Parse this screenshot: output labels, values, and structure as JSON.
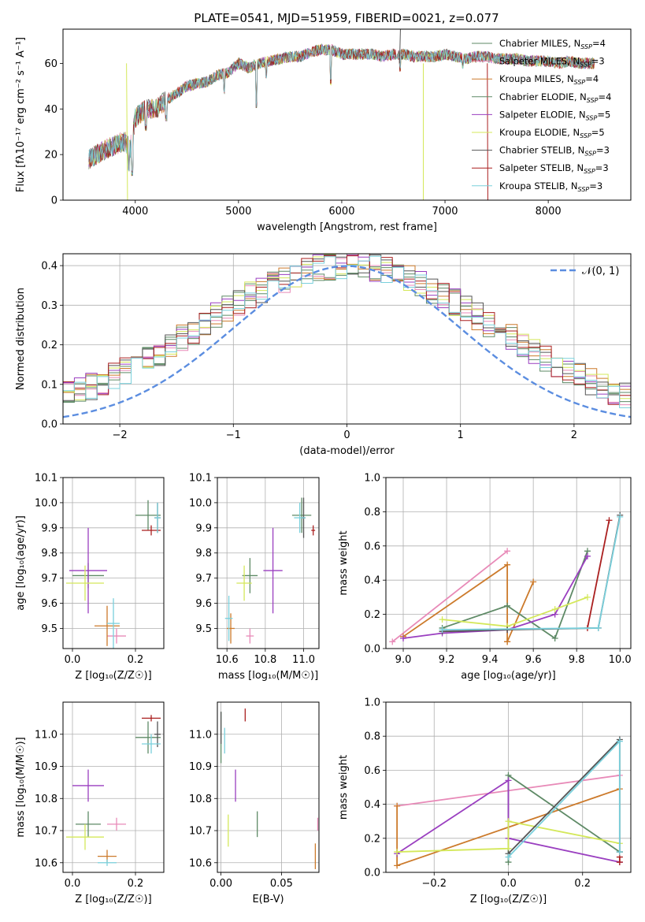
{
  "figure": {
    "title": "PLATE=0541, MJD=51959, FIBERID=0021, z=0.077"
  },
  "colors": {
    "series": [
      "#5e8a66",
      "#e88ab8",
      "#cc7a2b",
      "#5e8a66",
      "#9a3fc0",
      "#d4e85a",
      "#555555",
      "#aa1f1f",
      "#7ad0dc"
    ],
    "gauss": "#5b8de0"
  },
  "chart_data": [
    {
      "id": "spectrum",
      "type": "line",
      "xlabel": "wavelength [Angstrom, rest frame]",
      "ylabel": "Flux [fλ10⁻¹⁷ erg cm⁻² s⁻¹ A⁻¹]",
      "xlim": [
        3300,
        8800
      ],
      "ylim": [
        0,
        75
      ],
      "xticks": [
        4000,
        5000,
        6000,
        7000,
        8000
      ],
      "yticks": [
        0,
        20,
        40,
        60
      ],
      "continuum": {
        "x": [
          3550,
          3700,
          3800,
          3900,
          3950,
          4000,
          4100,
          4200,
          4300,
          4400,
          4500,
          4600,
          4700,
          4800,
          4900,
          5000,
          5100,
          5200,
          5300,
          5400,
          5500,
          5600,
          5700,
          5800,
          5900,
          6000,
          6100,
          6200,
          6300,
          6400,
          6500,
          6600,
          6700,
          6800,
          6900,
          7000,
          7100,
          7200,
          7300,
          7400,
          7500,
          7600,
          7700,
          7800,
          7900,
          8000,
          8100,
          8200,
          8300,
          8400,
          8450
        ],
        "y": [
          18,
          22,
          24,
          26,
          22,
          36,
          40,
          40,
          44,
          47,
          50,
          51,
          52,
          55,
          56,
          60,
          58,
          60,
          61,
          62,
          63,
          63,
          65,
          66,
          66,
          64,
          64,
          64,
          64,
          63,
          64,
          64,
          63,
          63,
          63,
          64,
          63,
          62,
          63,
          63,
          62,
          62,
          62,
          61,
          61,
          61,
          60,
          61,
          60,
          60,
          60
        ]
      },
      "dips": [
        {
          "x": 3935,
          "y": 14
        },
        {
          "x": 3970,
          "y": 12
        },
        {
          "x": 4102,
          "y": 32
        },
        {
          "x": 4300,
          "y": 36
        },
        {
          "x": 4861,
          "y": 48
        },
        {
          "x": 5175,
          "y": 42
        },
        {
          "x": 5270,
          "y": 55
        },
        {
          "x": 5893,
          "y": 52
        },
        {
          "x": 6563,
          "y": 58
        },
        {
          "x": 7170,
          "y": 59
        }
      ],
      "spikes": [
        {
          "x": 3915,
          "x2": 3925,
          "y": 0
        },
        {
          "x": 6790,
          "x2": 6790,
          "y": 0
        },
        {
          "x": 7410,
          "x2": 7415,
          "y": 0
        },
        {
          "x": 6560,
          "x2": 6570,
          "y": 78
        }
      ],
      "legend": [
        {
          "label": "Chabrier MILES, N",
          "sub": "SSP",
          "suffix": "=4"
        },
        {
          "label": "Salpeter MILES, N",
          "sub": "SSP",
          "suffix": "=3"
        },
        {
          "label": "Kroupa MILES, N",
          "sub": "SSP",
          "suffix": "=4"
        },
        {
          "label": "Chabrier ELODIE, N",
          "sub": "SSP",
          "suffix": "=4"
        },
        {
          "label": "Salpeter ELODIE, N",
          "sub": "SSP",
          "suffix": "=5"
        },
        {
          "label": "Kroupa ELODIE, N",
          "sub": "SSP",
          "suffix": "=5"
        },
        {
          "label": "Chabrier STELIB, N",
          "sub": "SSP",
          "suffix": "=3"
        },
        {
          "label": "Salpeter STELIB, N",
          "sub": "SSP",
          "suffix": "=3"
        },
        {
          "label": "Kroupa STELIB, N",
          "sub": "SSP",
          "suffix": "=3"
        }
      ]
    },
    {
      "id": "residuals",
      "type": "histogram",
      "xlabel": "(data-model)/error",
      "ylabel": "Normed distribution",
      "xlim": [
        -2.5,
        2.5
      ],
      "ylim": [
        0,
        0.43
      ],
      "xticks": [
        -2,
        -1,
        0,
        1,
        2
      ],
      "yticks": [
        0.0,
        0.1,
        0.2,
        0.3,
        0.4
      ],
      "grid": true,
      "bin_edges_start": -2.5,
      "bin_width": 0.1,
      "gaussian_label": "𝒩(0, 1)",
      "gaussian": {
        "mu": 0,
        "sigma": 1
      }
    },
    {
      "id": "age_vs_Z",
      "type": "errorbar",
      "xlabel": "Z [log₁₀(Z/Z☉)]",
      "ylabel": "age  [log₁₀(age/yr)]",
      "xlim": [
        -0.03,
        0.29
      ],
      "ylim": [
        9.42,
        10.1
      ],
      "xticks": [
        0.0,
        0.2
      ],
      "xticklabels": [
        "0.0",
        "0.2"
      ],
      "yticks": [
        9.5,
        9.6,
        9.7,
        9.8,
        9.9,
        10.0,
        10.1
      ],
      "grid": true,
      "points": [
        {
          "c": 0,
          "x": 0.05,
          "xe": 0.05,
          "y": 9.71,
          "ye": 0.05
        },
        {
          "c": 1,
          "x": 0.14,
          "xe": 0.03,
          "y": 9.47,
          "ye": 0.03
        },
        {
          "c": 2,
          "x": 0.11,
          "xe": 0.04,
          "y": 9.51,
          "ye": 0.08
        },
        {
          "c": 3,
          "x": 0.24,
          "xe": 0.04,
          "y": 9.95,
          "ye": 0.06
        },
        {
          "c": 4,
          "x": 0.05,
          "xe": 0.06,
          "y": 9.73,
          "ye": 0.17
        },
        {
          "c": 5,
          "x": 0.04,
          "xe": 0.06,
          "y": 9.68,
          "ye": 0.07
        },
        {
          "c": 6,
          "x": 0.27,
          "xe": 0.01,
          "y": 9.94,
          "ye": 0.06
        },
        {
          "c": 7,
          "x": 0.25,
          "xe": 0.03,
          "y": 9.89,
          "ye": 0.02
        },
        {
          "c": 8,
          "x": 0.27,
          "xe": 0.01,
          "y": 9.94,
          "ye": 0.06
        },
        {
          "c": 8,
          "x": 0.13,
          "xe": 0.02,
          "y": 9.52,
          "ye": 0.1
        }
      ]
    },
    {
      "id": "age_vs_mass",
      "type": "errorbar",
      "xlabel": "mass [log₁₀(M/M☉)]",
      "ylabel": "",
      "xlim": [
        10.55,
        11.08
      ],
      "ylim": [
        9.42,
        10.1
      ],
      "xticks": [
        10.6,
        10.8,
        11.0
      ],
      "xticklabels": [
        "10.6",
        "10.8",
        "11.0"
      ],
      "yticks": [
        9.5,
        9.6,
        9.7,
        9.8,
        9.9,
        10.0,
        10.1
      ],
      "grid": true,
      "points": [
        {
          "c": 0,
          "x": 10.72,
          "xe": 0.04,
          "y": 9.71,
          "ye": 0.07
        },
        {
          "c": 1,
          "x": 10.72,
          "xe": 0.02,
          "y": 9.47,
          "ye": 0.03
        },
        {
          "c": 2,
          "x": 10.62,
          "xe": 0.02,
          "y": 9.5,
          "ye": 0.06
        },
        {
          "c": 3,
          "x": 10.99,
          "xe": 0.05,
          "y": 9.95,
          "ye": 0.07
        },
        {
          "c": 4,
          "x": 10.84,
          "xe": 0.05,
          "y": 9.73,
          "ye": 0.17
        },
        {
          "c": 5,
          "x": 10.69,
          "xe": 0.04,
          "y": 9.68,
          "ye": 0.07
        },
        {
          "c": 6,
          "x": 11.0,
          "xe": 0.01,
          "y": 9.94,
          "ye": 0.08
        },
        {
          "c": 7,
          "x": 11.05,
          "xe": 0.01,
          "y": 9.89,
          "ye": 0.02
        },
        {
          "c": 8,
          "x": 10.98,
          "xe": 0.03,
          "y": 9.94,
          "ye": 0.06
        },
        {
          "c": 8,
          "x": 10.61,
          "xe": 0.02,
          "y": 9.54,
          "ye": 0.09
        }
      ]
    },
    {
      "id": "weight_vs_age",
      "type": "line",
      "xlabel": "age  [log₁₀(age/yr)]",
      "ylabel": "mass weight",
      "xlim": [
        8.92,
        10.05
      ],
      "ylim": [
        0,
        1.0
      ],
      "xticks": [
        9.0,
        9.2,
        9.4,
        9.6,
        9.8,
        10.0
      ],
      "xticklabels": [
        "9.0",
        "9.2",
        "9.4",
        "9.6",
        "9.8",
        "10.0"
      ],
      "yticks": [
        0.0,
        0.2,
        0.4,
        0.6,
        0.8,
        1.0
      ],
      "grid": true,
      "series": [
        {
          "c": 1,
          "x": [
            8.95,
            9.48
          ],
          "y": [
            0.04,
            0.57
          ]
        },
        {
          "c": 2,
          "x": [
            9.0,
            9.48,
            9.48,
            9.6,
            9.48
          ],
          "y": [
            0.07,
            0.49,
            0.04,
            0.39,
            0.04
          ]
        },
        {
          "c": 3,
          "x": [
            9.18,
            9.48,
            9.7,
            9.85
          ],
          "y": [
            0.12,
            0.25,
            0.06,
            0.57
          ]
        },
        {
          "c": 4,
          "x": [
            9.0,
            9.18,
            9.48,
            9.7,
            9.85
          ],
          "y": [
            0.06,
            0.09,
            0.11,
            0.2,
            0.54
          ]
        },
        {
          "c": 5,
          "x": [
            9.18,
            9.48,
            9.7,
            9.85
          ],
          "y": [
            0.17,
            0.13,
            0.23,
            0.3
          ]
        },
        {
          "c": 6,
          "x": [
            9.18,
            9.48,
            9.9,
            10.0
          ],
          "y": [
            0.1,
            0.11,
            0.12,
            0.78
          ]
        },
        {
          "c": 7,
          "x": [
            9.85,
            9.95
          ],
          "y": [
            0.12,
            0.75
          ]
        },
        {
          "c": 8,
          "x": [
            9.18,
            9.9,
            10.0
          ],
          "y": [
            0.11,
            0.12,
            0.77
          ]
        }
      ]
    },
    {
      "id": "mass_vs_Z",
      "type": "errorbar",
      "xlabel": "Z [log₁₀(Z/Z☉)]",
      "ylabel": "mass [log₁₀(M/M☉)]",
      "xlim": [
        -0.03,
        0.29
      ],
      "ylim": [
        10.57,
        11.1
      ],
      "xticks": [
        0.0,
        0.2
      ],
      "xticklabels": [
        "0.0",
        "0.2"
      ],
      "yticks": [
        10.6,
        10.7,
        10.8,
        10.9,
        11.0
      ],
      "grid": true,
      "points": [
        {
          "c": 0,
          "x": 0.05,
          "xe": 0.04,
          "y": 10.72,
          "ye": 0.04
        },
        {
          "c": 1,
          "x": 0.14,
          "xe": 0.03,
          "y": 10.72,
          "ye": 0.02
        },
        {
          "c": 2,
          "x": 0.11,
          "xe": 0.03,
          "y": 10.62,
          "ye": 0.02
        },
        {
          "c": 3,
          "x": 0.24,
          "xe": 0.04,
          "y": 10.99,
          "ye": 0.05
        },
        {
          "c": 4,
          "x": 0.05,
          "xe": 0.05,
          "y": 10.84,
          "ye": 0.05
        },
        {
          "c": 5,
          "x": 0.04,
          "xe": 0.06,
          "y": 10.68,
          "ye": 0.04
        },
        {
          "c": 6,
          "x": 0.27,
          "xe": 0.01,
          "y": 11.0,
          "ye": 0.04
        },
        {
          "c": 7,
          "x": 0.25,
          "xe": 0.03,
          "y": 11.05,
          "ye": 0.01
        },
        {
          "c": 8,
          "x": 0.25,
          "xe": 0.03,
          "y": 10.97,
          "ye": 0.03
        },
        {
          "c": 8,
          "x": 0.11,
          "xe": 0.03,
          "y": 10.6,
          "ye": 0.01
        }
      ]
    },
    {
      "id": "mass_vs_EBV",
      "type": "errorbar",
      "xlabel": "E(B-V)",
      "ylabel": "",
      "xlim": [
        -0.003,
        0.081
      ],
      "ylim": [
        10.57,
        11.1
      ],
      "xticks": [
        0.0,
        0.05
      ],
      "xticklabels": [
        "0.00",
        "0.05"
      ],
      "yticks": [
        10.6,
        10.7,
        10.8,
        10.9,
        11.0
      ],
      "grid": true,
      "points": [
        {
          "c": 0,
          "x": 0.03,
          "xe": 0,
          "y": 10.72,
          "ye": 0.04
        },
        {
          "c": 1,
          "x": 0.08,
          "xe": 0,
          "y": 10.72,
          "ye": 0.02
        },
        {
          "c": 2,
          "x": 0.078,
          "xe": 0,
          "y": 10.62,
          "ye": 0.04
        },
        {
          "c": 3,
          "x": 0.0,
          "xe": 0,
          "y": 10.99,
          "ye": 0.08
        },
        {
          "c": 4,
          "x": 0.012,
          "xe": 0,
          "y": 10.84,
          "ye": 0.05
        },
        {
          "c": 5,
          "x": 0.006,
          "xe": 0,
          "y": 10.7,
          "ye": 0.05
        },
        {
          "c": 6,
          "x": 0.0,
          "xe": 0,
          "y": 11.02,
          "ye": 0.05
        },
        {
          "c": 7,
          "x": 0.02,
          "xe": 0,
          "y": 11.06,
          "ye": 0.02
        },
        {
          "c": 8,
          "x": 0.003,
          "xe": 0,
          "y": 10.98,
          "ye": 0.04
        }
      ]
    },
    {
      "id": "weight_vs_Z",
      "type": "line",
      "xlabel": "Z [log₁₀(Z/Z☉)]",
      "ylabel": "mass weight",
      "xlim": [
        -0.33,
        0.33
      ],
      "ylim": [
        0,
        1.0
      ],
      "xticks": [
        -0.2,
        0.0,
        0.2
      ],
      "xticklabels": [
        "−0.2",
        "0.0",
        "0.2"
      ],
      "yticks": [
        0.0,
        0.2,
        0.4,
        0.6,
        0.8,
        1.0
      ],
      "grid": true,
      "series": [
        {
          "c": 1,
          "x": [
            -0.3,
            0.3
          ],
          "y": [
            0.39,
            0.57
          ]
        },
        {
          "c": 2,
          "x": [
            -0.3,
            -0.3,
            0.3
          ],
          "y": [
            0.39,
            0.04,
            0.49
          ]
        },
        {
          "c": 3,
          "x": [
            0.0,
            0.0,
            0.3
          ],
          "y": [
            0.06,
            0.57,
            0.12
          ]
        },
        {
          "c": 4,
          "x": [
            -0.3,
            0.0,
            0.0,
            0.3
          ],
          "y": [
            0.11,
            0.54,
            0.2,
            0.06
          ]
        },
        {
          "c": 5,
          "x": [
            -0.3,
            0.0,
            0.0,
            0.3
          ],
          "y": [
            0.12,
            0.14,
            0.3,
            0.17
          ]
        },
        {
          "c": 6,
          "x": [
            0.0,
            0.3,
            0.3
          ],
          "y": [
            0.11,
            0.78,
            0.12
          ]
        },
        {
          "c": 7,
          "x": [
            0.3,
            0.3
          ],
          "y": [
            0.09,
            0.06
          ]
        },
        {
          "c": 8,
          "x": [
            0.0,
            0.3,
            0.3
          ],
          "y": [
            0.09,
            0.77,
            0.12
          ]
        }
      ]
    }
  ]
}
